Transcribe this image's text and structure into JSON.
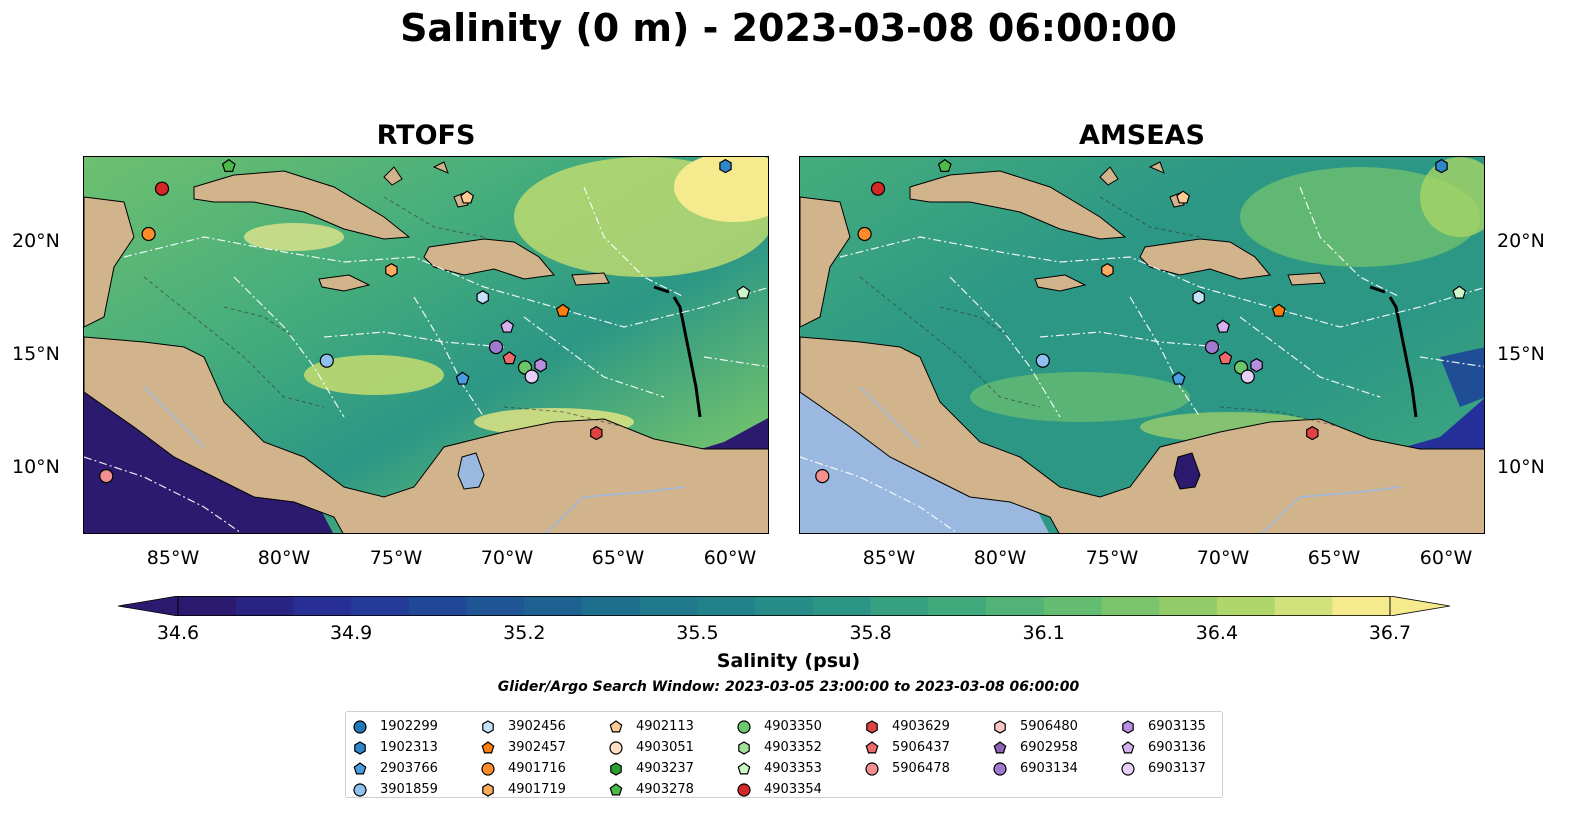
{
  "title": "Salinity (0 m) - 2023-03-08 06:00:00",
  "panels": [
    {
      "title": "RTOFS"
    },
    {
      "title": "AMSEAS"
    }
  ],
  "lat_labels": [
    "20°N",
    "15°N",
    "10°N"
  ],
  "lon_labels": [
    "85°W",
    "80°W",
    "75°W",
    "70°W",
    "65°W",
    "60°W"
  ],
  "colorbar": {
    "label": "Salinity (psu)",
    "ticks": [
      "34.6",
      "34.9",
      "35.2",
      "35.5",
      "35.8",
      "36.1",
      "36.4",
      "36.7"
    ],
    "min": 34.6,
    "max": 36.7,
    "colormap": "summer-viridis (dark purple to yellow)",
    "colors": [
      "#2b1a6e",
      "#26309a",
      "#1f4e96",
      "#1d6b8f",
      "#21818a",
      "#2c9785",
      "#45ad7c",
      "#6ec06f",
      "#a6d466",
      "#f5eb8e"
    ]
  },
  "search_window": "Glider/Argo Search Window: 2023-03-05 23:00:00 to 2023-03-08 06:00:00",
  "colors": {
    "land": "#d2b48c",
    "ocean_mask": "#9bb8e0",
    "outflow_low_salinity": "#2b1a6e"
  },
  "legend": {
    "columns": [
      [
        {
          "id": "1902299",
          "shape": "circle",
          "color": "#1f77b4"
        },
        {
          "id": "1902313",
          "shape": "hexagon",
          "color": "#2f86c9"
        },
        {
          "id": "2903766",
          "shape": "pentagon",
          "color": "#4a9de0"
        },
        {
          "id": "3901859",
          "shape": "circle",
          "color": "#8ec1ef"
        }
      ],
      [
        {
          "id": "3902456",
          "shape": "hexagon",
          "color": "#c6e2fa"
        },
        {
          "id": "3902457",
          "shape": "pentagon",
          "color": "#ff7f0e"
        },
        {
          "id": "4901716",
          "shape": "circle",
          "color": "#ff8c2a"
        },
        {
          "id": "4901719",
          "shape": "hexagon",
          "color": "#ffaa5e"
        }
      ],
      [
        {
          "id": "4902113",
          "shape": "pentagon",
          "color": "#ffcb95"
        },
        {
          "id": "4903051",
          "shape": "circle",
          "color": "#ffe0c2"
        },
        {
          "id": "4903237",
          "shape": "hexagon",
          "color": "#2ca02c"
        },
        {
          "id": "4903278",
          "shape": "pentagon",
          "color": "#4cbb4c"
        }
      ],
      [
        {
          "id": "4903350",
          "shape": "circle",
          "color": "#6cc76c"
        },
        {
          "id": "4903352",
          "shape": "hexagon",
          "color": "#a0e09a"
        },
        {
          "id": "4903353",
          "shape": "pentagon",
          "color": "#ccf5c8"
        },
        {
          "id": "4903354",
          "shape": "circle",
          "color": "#d62728"
        }
      ],
      [
        {
          "id": "4903629",
          "shape": "hexagon",
          "color": "#e04244"
        },
        {
          "id": "5906437",
          "shape": "pentagon",
          "color": "#ef6b6b"
        },
        {
          "id": "5906478",
          "shape": "circle",
          "color": "#f59090"
        }
      ],
      [
        {
          "id": "5906480",
          "shape": "hexagon",
          "color": "#fcc6c6"
        },
        {
          "id": "6902958",
          "shape": "pentagon",
          "color": "#8c63b8"
        },
        {
          "id": "6903134",
          "shape": "circle",
          "color": "#a07ad0"
        }
      ],
      [
        {
          "id": "6903135",
          "shape": "hexagon",
          "color": "#b88ee0"
        },
        {
          "id": "6903136",
          "shape": "pentagon",
          "color": "#d5b1f0"
        },
        {
          "id": "6903137",
          "shape": "circle",
          "color": "#e8cff8"
        }
      ]
    ]
  },
  "floats_on_map": [
    {
      "id": "4903278",
      "lon": -82.5,
      "lat": 23.4
    },
    {
      "id": "4903354",
      "lon": -85.5,
      "lat": 22.4
    },
    {
      "id": "4901716",
      "lon": -86.1,
      "lat": 20.4
    },
    {
      "id": "4902113",
      "lon": -71.8,
      "lat": 22.0
    },
    {
      "id": "1902313",
      "lon": -60.2,
      "lat": 23.4
    },
    {
      "id": "4901719",
      "lon": -75.2,
      "lat": 18.8
    },
    {
      "id": "3902456",
      "lon": -71.1,
      "lat": 17.6
    },
    {
      "id": "3902457",
      "lon": -67.5,
      "lat": 17.0
    },
    {
      "id": "4903353",
      "lon": -59.4,
      "lat": 17.8
    },
    {
      "id": "6903136",
      "lon": -70.0,
      "lat": 16.3
    },
    {
      "id": "6903134",
      "lon": -70.5,
      "lat": 15.4
    },
    {
      "id": "5906437",
      "lon": -69.9,
      "lat": 14.9
    },
    {
      "id": "4903350",
      "lon": -69.2,
      "lat": 14.5
    },
    {
      "id": "6903135",
      "lon": -68.5,
      "lat": 14.6
    },
    {
      "id": "6903137",
      "lon": -68.9,
      "lat": 14.1
    },
    {
      "id": "3901859",
      "lon": -78.1,
      "lat": 14.8
    },
    {
      "id": "2903766",
      "lon": -72.0,
      "lat": 14.0
    },
    {
      "id": "4903629",
      "lon": -66.0,
      "lat": 11.6
    },
    {
      "id": "5906478",
      "lon": -88.0,
      "lat": 9.7
    }
  ]
}
